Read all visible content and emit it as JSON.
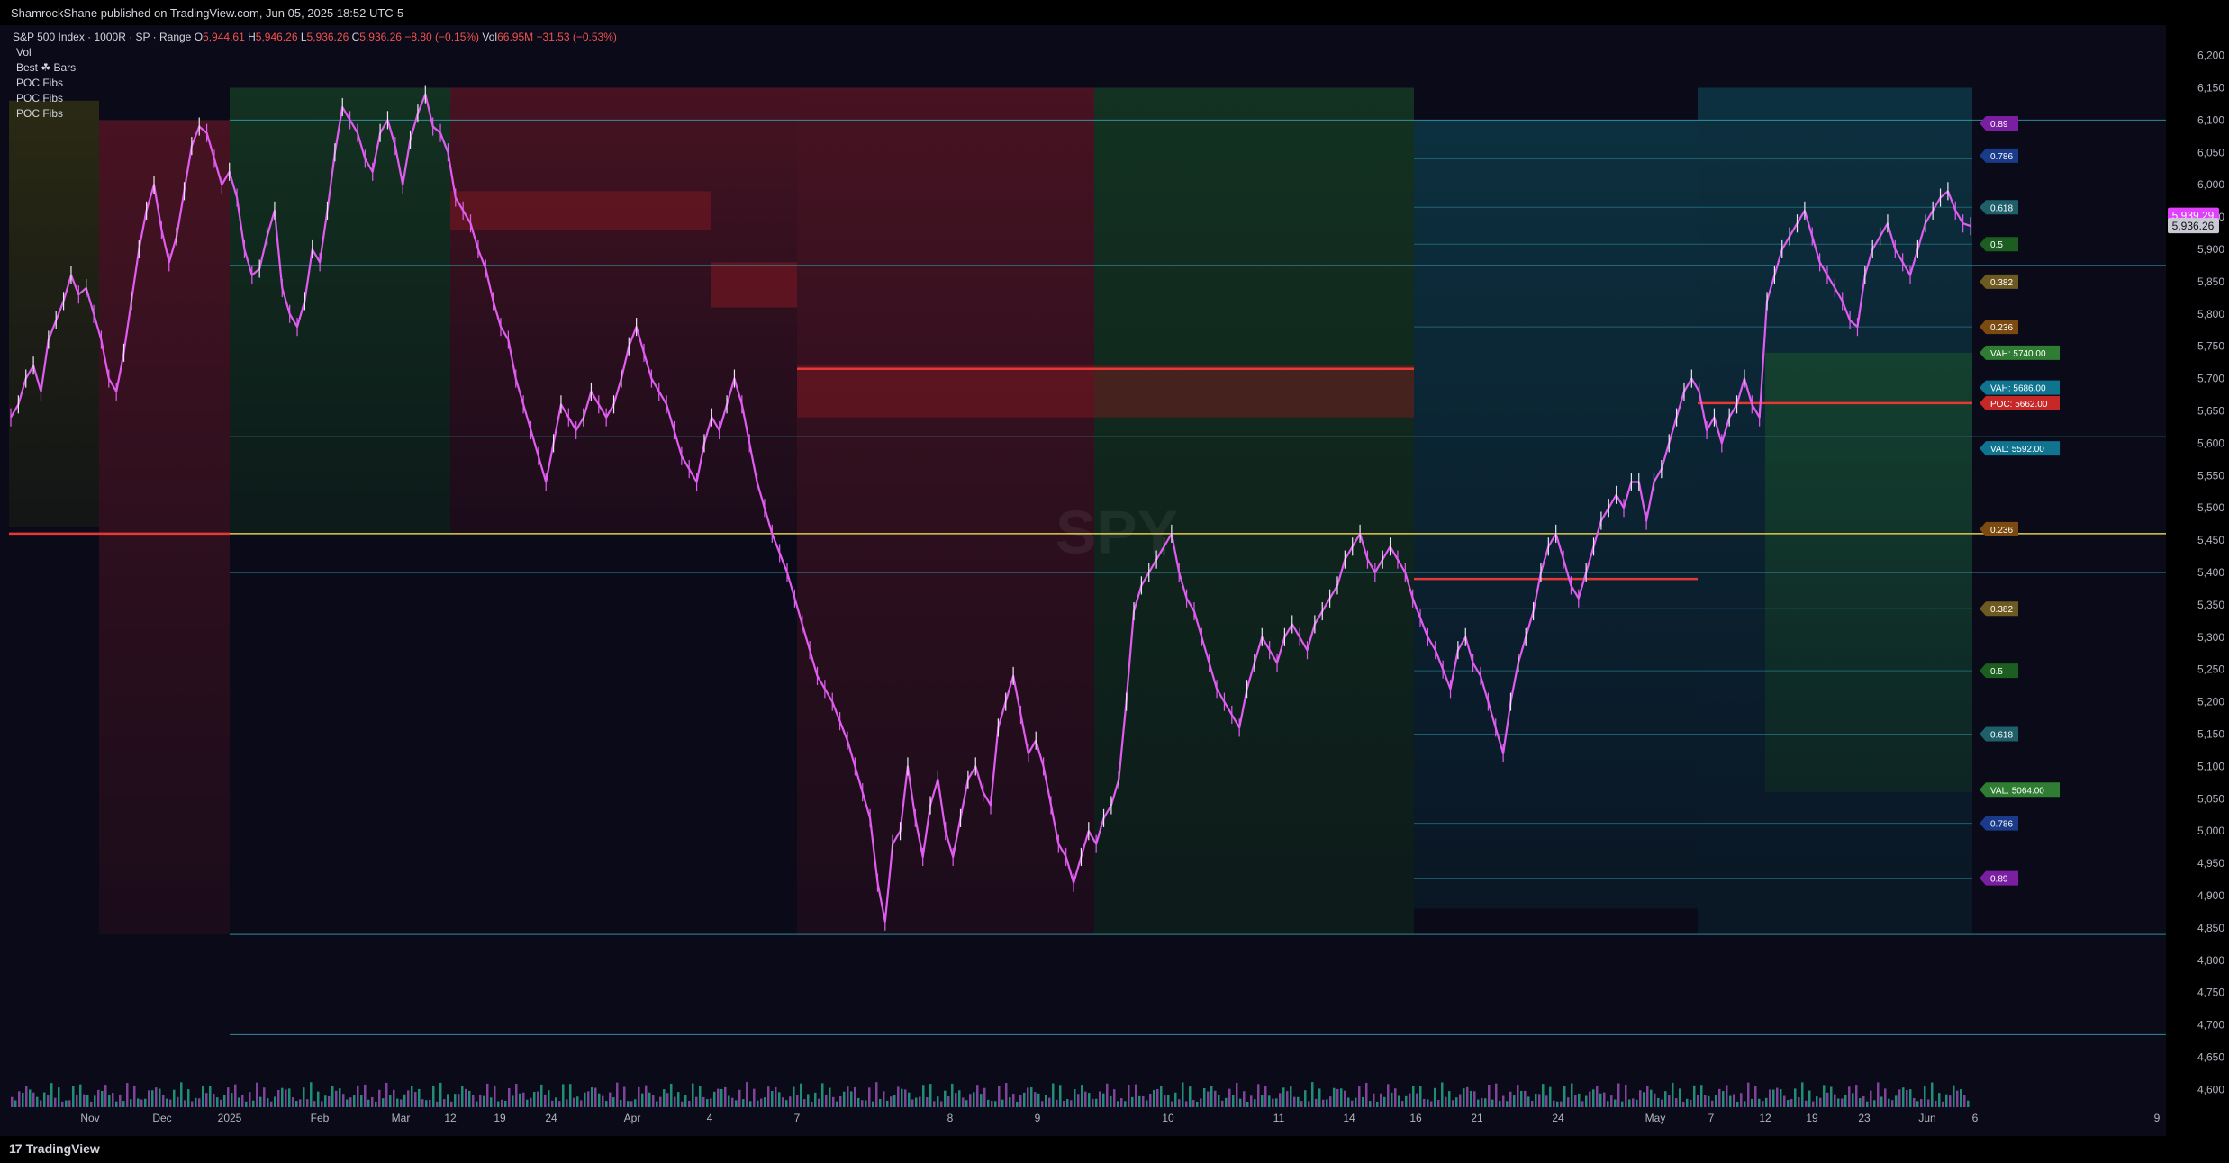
{
  "header": {
    "published": "ShamrockShane published on TradingView.com, Jun 05, 2025 18:52 UTC-5"
  },
  "symbol": {
    "name": "S&P 500 Index · 1000R · SP · Range",
    "o_label": "O",
    "o_value": "5,944.61",
    "h_label": "H",
    "h_value": "5,946.26",
    "l_label": "L",
    "l_value": "5,936.26",
    "c_label": "C",
    "c_value": "5,936.26",
    "change": "−8.80 (−0.15%)",
    "vol_label": "Vol",
    "vol_value": "66.95M",
    "vol_change": "−31.53 (−0.53%)"
  },
  "indicators": [
    "Vol",
    "Best ☘ Bars",
    "POC Fibs",
    "POC Fibs",
    "POC Fibs"
  ],
  "watermark": "SPY",
  "footer": {
    "brand": "TradingView",
    "mark": "17"
  },
  "colors": {
    "background": "#0a0a18",
    "up": "#26a69a",
    "down": "#ef5350",
    "candle": "#e05cf0",
    "fib_line": "#2f8a9a",
    "poc": "#e53935",
    "level_yellow": "#e0c84a"
  },
  "chart_data": {
    "type": "line",
    "title": "S&P 500 Index · 1000R · SP · Range",
    "xlabel": "",
    "ylabel": "",
    "ylim": [
      4570,
      6230
    ],
    "y_ticks": [
      6200,
      6150,
      6100,
      6050,
      6000,
      5950,
      5900,
      5850,
      5800,
      5750,
      5700,
      5650,
      5600,
      5550,
      5500,
      5450,
      5400,
      5350,
      5300,
      5250,
      5200,
      5150,
      5100,
      5050,
      5000,
      4950,
      4900,
      4850,
      4800,
      4750,
      4700,
      4650,
      4600
    ],
    "x_ticks": [
      "Nov",
      "Dec",
      "2025",
      "Feb",
      "Mar",
      "12",
      "19",
      "24",
      "Apr",
      "4",
      "7",
      "8",
      "9",
      "10",
      "11",
      "14",
      "16",
      "21",
      "24",
      "May",
      "7",
      "12",
      "19",
      "23",
      "Jun",
      "6",
      "9"
    ],
    "last_price": "5,936.26",
    "prev_price": "5,939.29",
    "series": [
      {
        "values": [
          5640,
          5660,
          5700,
          5720,
          5680,
          5760,
          5790,
          5820,
          5860,
          5830,
          5840,
          5800,
          5760,
          5700,
          5680,
          5740,
          5820,
          5900,
          5960,
          6000,
          5930,
          5880,
          5920,
          5990,
          6060,
          6090,
          6080,
          6040,
          6000,
          6020,
          5980,
          5900,
          5860,
          5870,
          5920,
          5960,
          5840,
          5800,
          5780,
          5820,
          5900,
          5880,
          5960,
          6050,
          6120,
          6100,
          6080,
          6040,
          6020,
          6080,
          6100,
          6060,
          6000,
          6070,
          6110,
          6140,
          6090,
          6080,
          6050,
          5980,
          5960,
          5940,
          5900,
          5870,
          5820,
          5780,
          5760,
          5700,
          5660,
          5620,
          5580,
          5540,
          5600,
          5660,
          5640,
          5620,
          5640,
          5680,
          5660,
          5640,
          5660,
          5700,
          5750,
          5780,
          5740,
          5700,
          5680,
          5660,
          5620,
          5580,
          5560,
          5540,
          5600,
          5640,
          5620,
          5660,
          5700,
          5660,
          5600,
          5540,
          5500,
          5460,
          5430,
          5400,
          5360,
          5320,
          5280,
          5240,
          5220,
          5200,
          5170,
          5140,
          5100,
          5060,
          5020,
          4920,
          4860,
          4980,
          5000,
          5100,
          5020,
          4960,
          5040,
          5080,
          5000,
          4960,
          5020,
          5080,
          5100,
          5060,
          5040,
          5160,
          5200,
          5240,
          5180,
          5120,
          5140,
          5100,
          5040,
          4980,
          4960,
          4920,
          4960,
          5000,
          4980,
          5020,
          5040,
          5080,
          5200,
          5340,
          5380,
          5400,
          5420,
          5440,
          5460,
          5400,
          5360,
          5340,
          5300,
          5260,
          5220,
          5200,
          5180,
          5160,
          5220,
          5260,
          5300,
          5280,
          5260,
          5300,
          5320,
          5300,
          5280,
          5320,
          5340,
          5360,
          5380,
          5420,
          5440,
          5460,
          5420,
          5400,
          5420,
          5440,
          5420,
          5400,
          5360,
          5330,
          5300,
          5280,
          5250,
          5220,
          5280,
          5300,
          5260,
          5240,
          5200,
          5160,
          5120,
          5200,
          5260,
          5300,
          5340,
          5400,
          5440,
          5460,
          5420,
          5380,
          5360,
          5400,
          5440,
          5480,
          5500,
          5520,
          5500,
          5540,
          5540,
          5480,
          5540,
          5560,
          5600,
          5640,
          5680,
          5700,
          5680,
          5620,
          5640,
          5600,
          5640,
          5660,
          5700,
          5660,
          5640,
          5820,
          5860,
          5900,
          5920,
          5940,
          5960,
          5920,
          5880,
          5860,
          5840,
          5820,
          5790,
          5780,
          5860,
          5900,
          5920,
          5940,
          5900,
          5880,
          5860,
          5900,
          5940,
          5960,
          5980,
          5990,
          5960,
          5940,
          5936
        ]
      }
    ],
    "fib_labels": [
      {
        "text": "0.89",
        "y": 6095,
        "color": "#7b1fa2"
      },
      {
        "text": "0.786",
        "y": 6045,
        "color": "#1a3a8a"
      },
      {
        "text": "0.618",
        "y": 5965,
        "color": "#1f5f6a"
      },
      {
        "text": "0.5",
        "y": 5908,
        "color": "#1b5e20"
      },
      {
        "text": "0.382",
        "y": 5850,
        "color": "#6d5a20"
      },
      {
        "text": "0.236",
        "y": 5780,
        "color": "#7a4a10"
      },
      {
        "text": "VAH: 5740.00",
        "y": 5740,
        "color": "#2e7d32"
      },
      {
        "text": "VAH: 5686.00",
        "y": 5686,
        "color": "#0e7490"
      },
      {
        "text": "POC: 5662.00",
        "y": 5662,
        "color": "#c62828"
      },
      {
        "text": "VAL: 5592.00",
        "y": 5592,
        "color": "#0e7490"
      },
      {
        "text": "0.236",
        "y": 5467,
        "color": "#7a4a10"
      },
      {
        "text": "0.382",
        "y": 5344,
        "color": "#6d5a20"
      },
      {
        "text": "0.5",
        "y": 5248,
        "color": "#1b5e20"
      },
      {
        "text": "0.618",
        "y": 5150,
        "color": "#1f5f6a"
      },
      {
        "text": "VAL: 5064.00",
        "y": 5064,
        "color": "#2e7d32"
      },
      {
        "text": "0.786",
        "y": 5012,
        "color": "#1a3a8a"
      },
      {
        "text": "0.89",
        "y": 4927,
        "color": "#7b1fa2"
      }
    ],
    "horizontal_levels": [
      6100,
      5875,
      5610,
      5460,
      5400,
      4840,
      4685
    ],
    "poc_level": 5460
  }
}
